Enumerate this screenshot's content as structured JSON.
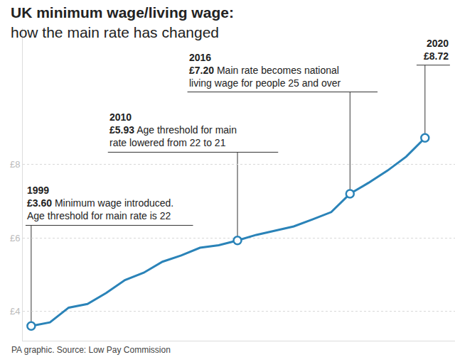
{
  "chart_data": {
    "type": "line",
    "title": "UK minimum wage/living wage:",
    "subtitle": "how the main rate has changed",
    "source": "PA graphic. Source: Low Pay Commission",
    "x": [
      1999,
      2000,
      2001,
      2002,
      2003,
      2004,
      2005,
      2006,
      2007,
      2008,
      2009,
      2010,
      2011,
      2012,
      2013,
      2014,
      2015,
      2016,
      2017,
      2018,
      2019,
      2020
    ],
    "values": [
      3.6,
      3.7,
      4.1,
      4.2,
      4.5,
      4.85,
      5.05,
      5.35,
      5.52,
      5.73,
      5.8,
      5.93,
      6.08,
      6.19,
      6.31,
      6.5,
      6.7,
      7.2,
      7.5,
      7.83,
      8.21,
      8.72
    ],
    "color": "#2a83b8",
    "marker": "circle",
    "xlim": [
      1998.55,
      2021.6
    ],
    "ylim": [
      3.2,
      11.7
    ],
    "yticks": [
      {
        "value": 4,
        "label": "£4"
      },
      {
        "value": 6,
        "label": "£6"
      },
      {
        "value": 8,
        "label": "£8"
      }
    ],
    "grid": true,
    "tick_labels": "y",
    "annotations": [
      {
        "x": 1999,
        "label": "1999",
        "value_label": "£3.60",
        "text": [
          "Minimum wage introduced.",
          "Age threshold for main rate is 22"
        ]
      },
      {
        "x": 2010,
        "label": "2010",
        "value_label": "£5.93",
        "text": [
          "Age threshold for main",
          "rate lowered from 22 to 21"
        ]
      },
      {
        "x": 2016,
        "label": "2016",
        "value_label": "£7.20",
        "text": [
          "Main rate becomes national",
          "living wage for people 25 and over"
        ]
      },
      {
        "x": 2020,
        "label": "2020",
        "value_label": "£8.72"
      }
    ]
  }
}
